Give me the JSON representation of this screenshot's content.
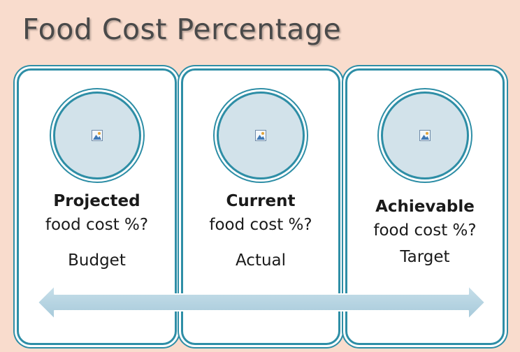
{
  "title": "Food Cost Percentage",
  "cards": [
    {
      "heading": "Projected",
      "subtitle": "food cost %?",
      "tag": "Budget"
    },
    {
      "heading": "Current",
      "subtitle": "food cost %?",
      "tag": "Actual"
    },
    {
      "heading": "Achievable",
      "subtitle": "food cost %?",
      "tag": "Target"
    }
  ],
  "arrow": {
    "direction": "bidirectional",
    "icon": "double-arrow-icon"
  },
  "placeholder_icon": "picture-placeholder-icon",
  "colors": {
    "background": "#f9dccd",
    "border": "#2e8ea6",
    "circle_fill": "#d2e2ea",
    "arrow_fill": "#b3d2e0",
    "title": "#4a4a4a"
  }
}
